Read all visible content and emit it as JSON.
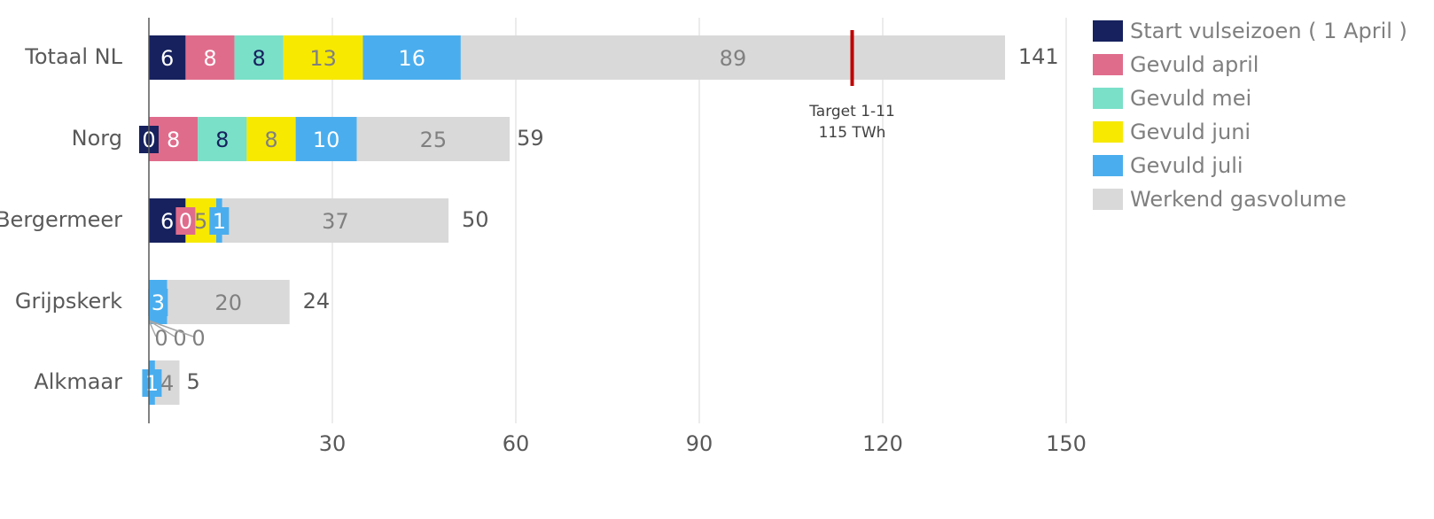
{
  "chart_data": {
    "type": "stacked-bar",
    "orientation": "horizontal",
    "categories": [
      "Totaal NL",
      "Norg",
      "Bergermeer",
      "Grijpskerk",
      "Alkmaar"
    ],
    "series": [
      {
        "name": "Start vulseizoen ( 1 April )",
        "color": "#16215e",
        "label_color": "#ffffff",
        "values": [
          6,
          0,
          6,
          0,
          0
        ],
        "value_labels": [
          "6",
          "0",
          "6",
          "0",
          null
        ]
      },
      {
        "name": "Gevuld april",
        "color": "#e06c8c",
        "label_color": "#ffffff",
        "values": [
          8,
          8,
          0,
          0,
          0
        ],
        "value_labels": [
          "8",
          "8",
          "0",
          "0",
          null
        ]
      },
      {
        "name": "Gevuld mei",
        "color": "#7ae0c8",
        "label_color": "#16215e",
        "values": [
          8,
          8,
          0,
          0,
          0
        ],
        "value_labels": [
          "8",
          "8",
          null,
          "0",
          null
        ]
      },
      {
        "name": "Gevuld juni",
        "color": "#f7e900",
        "label_color": "#808080",
        "values": [
          13,
          8,
          5,
          0,
          0
        ],
        "value_labels": [
          "13",
          "8",
          "5",
          null,
          null
        ]
      },
      {
        "name": "Gevuld juli",
        "color": "#4aaeee",
        "label_color": "#ffffff",
        "values": [
          16,
          10,
          1,
          3,
          1
        ],
        "value_labels": [
          "16",
          "10",
          "1",
          "3",
          "1"
        ]
      },
      {
        "name": "Werkend gasvolume",
        "color": "#d9d9d9",
        "label_color": "#808080",
        "values": [
          89,
          25,
          37,
          20,
          4
        ],
        "value_labels": [
          "89",
          "25",
          "37",
          "20",
          "4"
        ]
      }
    ],
    "totals": [
      141,
      59,
      50,
      24,
      5
    ],
    "xlim": [
      0,
      150
    ],
    "xticks": [
      30,
      60,
      90,
      120,
      150
    ],
    "grid": true,
    "legend": "right",
    "annotation": {
      "lines": [
        "Target 1-11",
        "115 TWh"
      ],
      "x": 115,
      "color": "#c00000"
    }
  }
}
